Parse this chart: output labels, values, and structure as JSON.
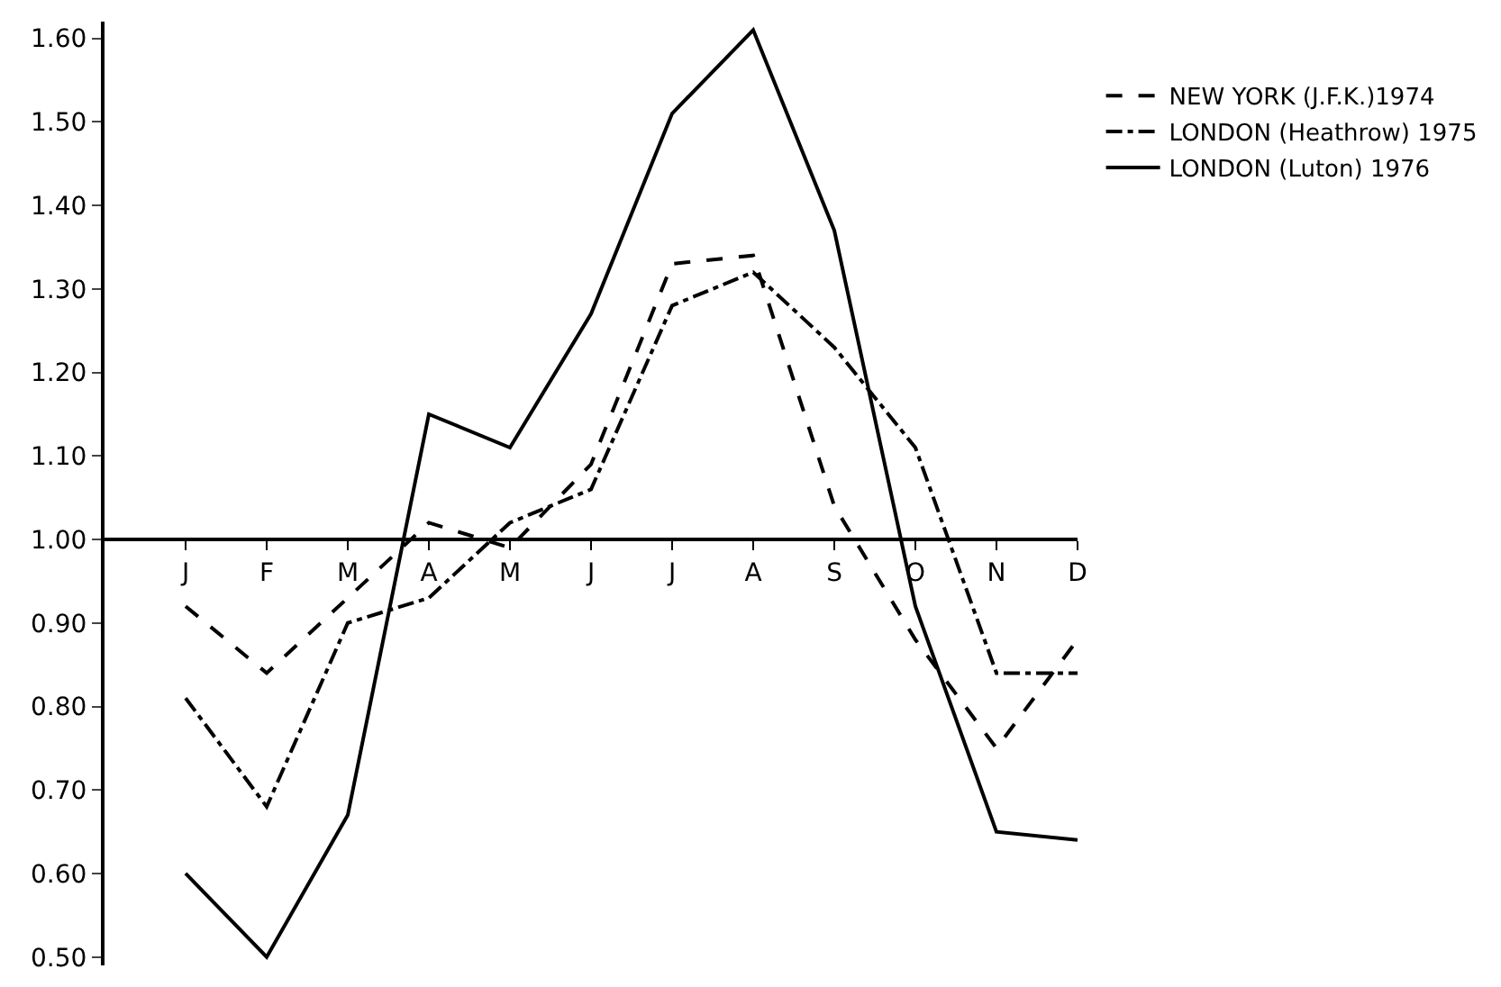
{
  "chart_data": {
    "type": "line",
    "categories": [
      "J",
      "F",
      "M",
      "A",
      "M",
      "J",
      "J",
      "A",
      "S",
      "O",
      "N",
      "D"
    ],
    "series": [
      {
        "name": "NEW YORK (J.F.K.)1974",
        "color": "#000000",
        "line_style": "dashed",
        "values": [
          0.92,
          0.84,
          0.93,
          1.02,
          0.99,
          1.09,
          1.33,
          1.34,
          1.04,
          0.88,
          0.75,
          0.88
        ]
      },
      {
        "name": "LONDON (Heathrow) 1975",
        "color": "#000000",
        "line_style": "dashdot",
        "values": [
          0.81,
          0.68,
          0.9,
          0.93,
          1.02,
          1.06,
          1.28,
          1.32,
          1.23,
          1.11,
          0.84,
          0.84
        ]
      },
      {
        "name": "LONDON (Luton) 1976",
        "color": "#000000",
        "line_style": "solid",
        "values": [
          0.6,
          0.5,
          0.67,
          1.15,
          1.11,
          1.27,
          1.51,
          1.61,
          1.37,
          0.92,
          0.65,
          0.64
        ]
      }
    ],
    "ylim": [
      0.49,
      1.62
    ],
    "yticks": [
      {
        "value": 0.5,
        "label": "0.50"
      },
      {
        "value": 0.6,
        "label": "0.60"
      },
      {
        "value": 0.7,
        "label": "0.70"
      },
      {
        "value": 0.8,
        "label": "0.80"
      },
      {
        "value": 0.9,
        "label": "0.90"
      },
      {
        "value": 1.0,
        "label": "1.00"
      },
      {
        "value": 1.1,
        "label": "1.10"
      },
      {
        "value": 1.2,
        "label": "1.20"
      },
      {
        "value": 1.3,
        "label": "1.30"
      },
      {
        "value": 1.4,
        "label": "1.40"
      },
      {
        "value": 1.5,
        "label": "1.50"
      },
      {
        "value": 1.6,
        "label": "1.60"
      }
    ],
    "legend": "top right",
    "marker": "none"
  }
}
